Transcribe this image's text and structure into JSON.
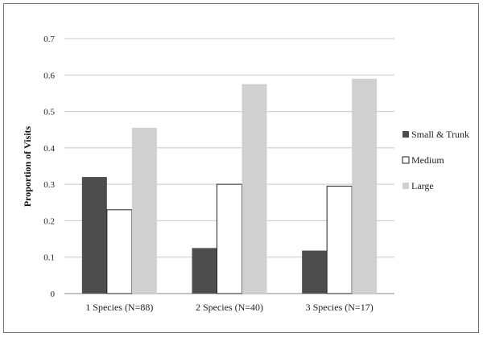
{
  "chart_data": {
    "type": "bar",
    "title": "",
    "xlabel": "",
    "ylabel": "Proportion of Visits",
    "ylim": [
      0,
      0.7
    ],
    "yticks": [
      "0",
      "0.1",
      "0.2",
      "0.3",
      "0.4",
      "0.5",
      "0.6",
      "0.7"
    ],
    "grid": true,
    "legend_position": "right",
    "categories": [
      "1 Species (N=88)",
      "2 Species (N=40)",
      "3 Species (N=17)"
    ],
    "series": [
      {
        "name": "Small & Trunk",
        "values": [
          0.32,
          0.125,
          0.118
        ],
        "color": "#4d4d4d"
      },
      {
        "name": "Medium",
        "values": [
          0.23,
          0.3,
          0.295
        ],
        "color": "#ffffff"
      },
      {
        "name": "Large",
        "values": [
          0.455,
          0.575,
          0.59
        ],
        "color": "#d0d0d0"
      }
    ]
  }
}
